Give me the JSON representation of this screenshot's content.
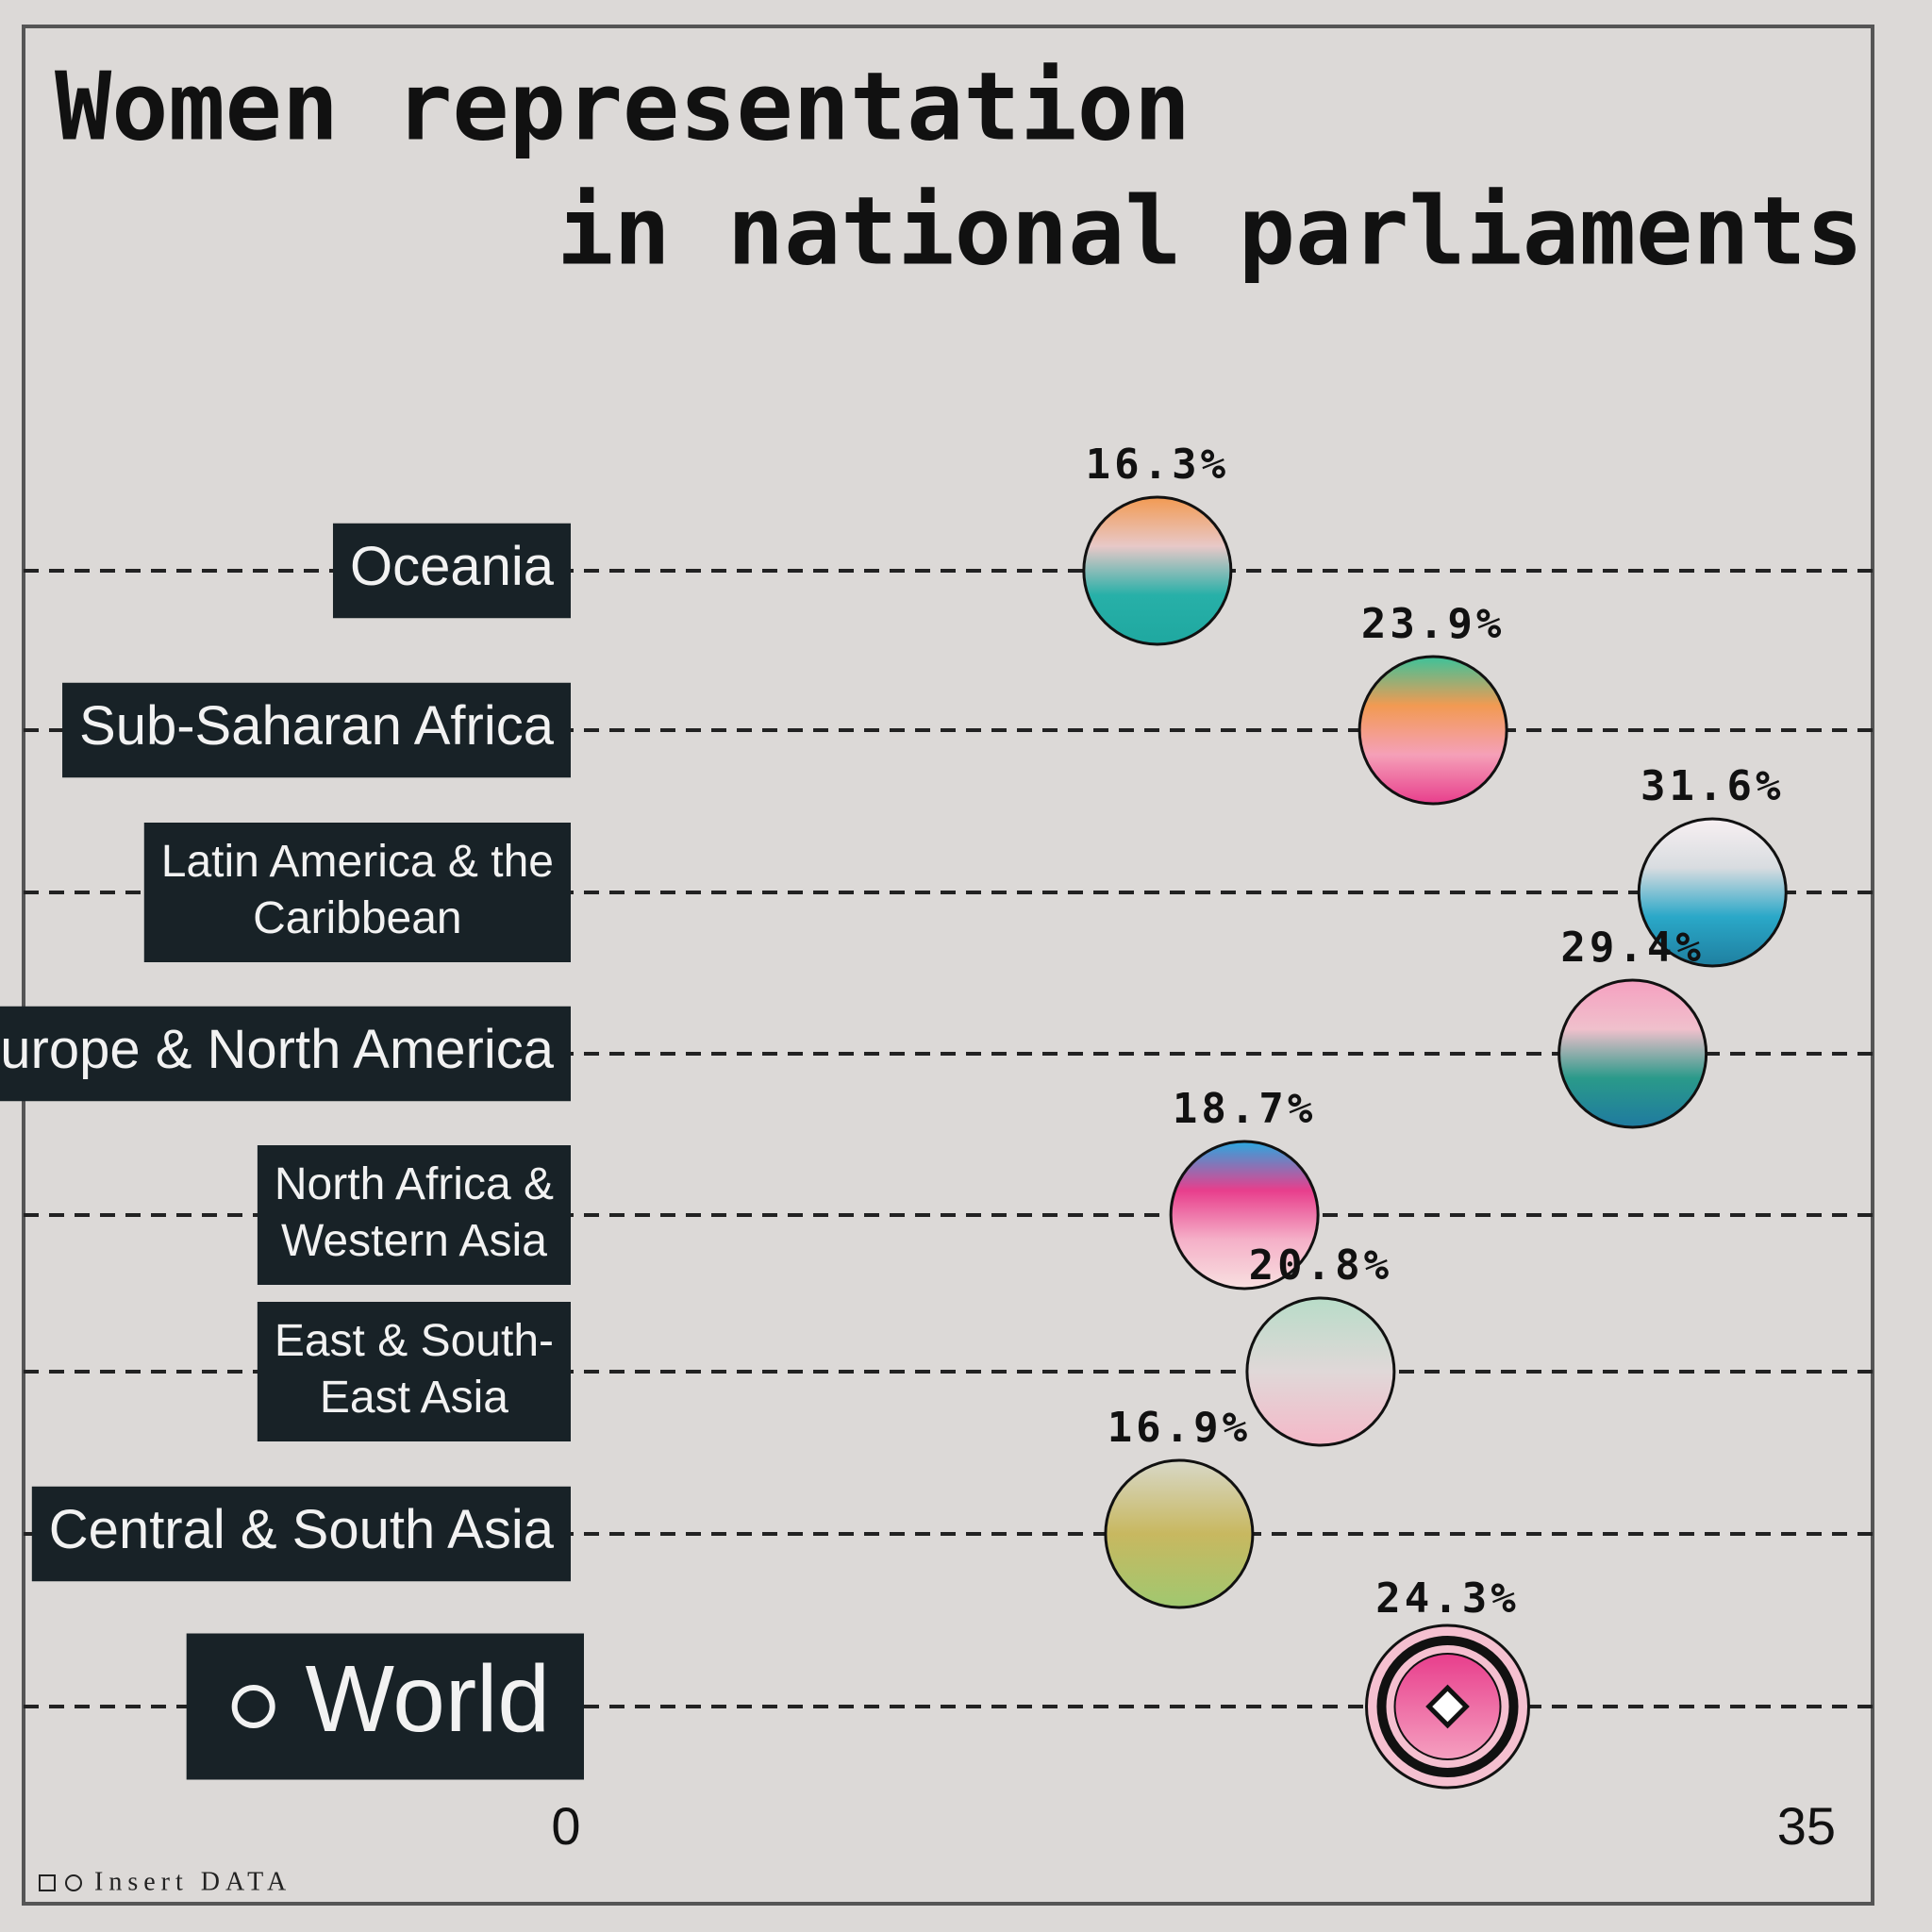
{
  "chart_data": {
    "type": "dot",
    "title_lines": [
      "Women representation",
      "in national parliaments"
    ],
    "categories": [
      "Oceania",
      "Sub-Saharan Africa",
      "Latin America & the\nCaribbean",
      "Europe & North America",
      "North Africa &\nWestern Asia",
      "East & South-\nEast Asia",
      "Central & South Asia",
      "World"
    ],
    "values": [
      16.3,
      23.9,
      31.6,
      29.4,
      18.7,
      20.8,
      16.9,
      24.3
    ],
    "value_labels": [
      "16.3%",
      "23.9%",
      "31.6%",
      "29.4%",
      "18.7%",
      "20.8%",
      "16.9%",
      "24.3%"
    ],
    "colors": [
      [
        "#f29a52",
        "#e8c8c8",
        "#27b0a8",
        "#1fa8a0"
      ],
      [
        "#3cc39a",
        "#f29a52",
        "#f5a0b8",
        "#e83e8c"
      ],
      [
        "#f8f0f2",
        "#d8dce0",
        "#2aa8c8",
        "#1f7fa0"
      ],
      [
        "#f5a0c0",
        "#f0c0cc",
        "#2a9a8a",
        "#1f7aa0"
      ],
      [
        "#2aa8e0",
        "#e83e8c",
        "#f5b0c8",
        "#f8e0e0"
      ],
      [
        "#b8dcc8",
        "#e0d8d8",
        "#f5b8c8"
      ],
      [
        "#d8d8c8",
        "#c8b860",
        "#a0c870"
      ],
      [
        "#e83e8c",
        "#f5a0c0"
      ]
    ],
    "highlight_index": 7,
    "xlim": [
      0,
      35
    ],
    "xticks": [
      0,
      35
    ],
    "credit": "Insert DATA"
  }
}
